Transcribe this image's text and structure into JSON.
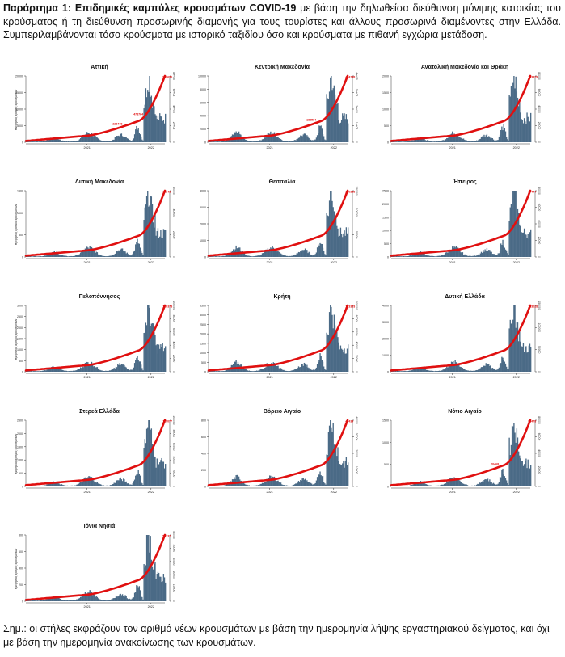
{
  "header": {
    "title": "Παράρτημα 1:  Επιδημικές καμπύλες κρουσμάτων COVID-19",
    "text": " με βάση την δηλωθείσα διεύθυνση μόνιμης κατοικίας του κρούσματος ή τη διεύθυνση προσωρινής διαμονής για τους τουρίστες και άλλους προσωρινά διαμένοντες στην Ελλάδα. Συμπεριλαμβάνονται τόσο κρούσματα με ιστορικό ταξιδίου όσο και κρούσματα με πιθανή εγχώρια μετάδοση."
  },
  "footnote": "Σημ.: οι στήλες εκφράζουν τον αριθμό νέων κρουσμάτων με βάση την ημερομηνία λήψης εργαστηριακού δείγματος, και όχι με βάση την ημερομηνία ανακοίνωσης των κρουσμάτων.",
  "colors": {
    "bars": "#4a6a86",
    "line": "#e01010",
    "label": "#e01010",
    "axis": "#333333"
  },
  "chart_data": [
    {
      "type": "bar",
      "title": "Αττική",
      "x_ticks": [
        "2021",
        "2022"
      ],
      "ymax_left": 20000,
      "y_ticks_left": [
        "0",
        "5000",
        "10000",
        "15000",
        "20000"
      ],
      "y_ticks_right": [
        "0",
        "2e+05",
        "4e+05",
        "6e+05",
        "8e+05"
      ],
      "cumulative_labels": [
        "228478",
        "478764",
        "988656"
      ],
      "ylabel_left": "Ημερήσιος αριθμός κρουσμάτων",
      "ylabel_right": "Αθροιστικός"
    },
    {
      "type": "bar",
      "title": "Κεντρική Μακεδονία",
      "x_ticks": [
        "2021",
        "2022"
      ],
      "ymax_left": 10000,
      "y_ticks_left": [
        "0",
        "2000",
        "4000",
        "6000",
        "8000",
        "10000"
      ],
      "y_ticks_right": [
        "0",
        "1e+05",
        "2e+05",
        "3e+05",
        "4e+05"
      ],
      "cumulative_labels": [
        "188584",
        "474798"
      ],
      "ylabel_left": "",
      "ylabel_right": ""
    },
    {
      "type": "bar",
      "title": "Ανατολική Μακεδονία και Θράκη",
      "x_ticks": [
        "2021",
        "2022"
      ],
      "ymax_left": 2000,
      "y_ticks_left": [
        "0",
        "500",
        "1000",
        "1500",
        "2000"
      ],
      "y_ticks_right": [
        "0",
        "20000",
        "40000",
        "60000",
        "80000"
      ],
      "cumulative_labels": [
        "143379"
      ],
      "ylabel_left": "",
      "ylabel_right": ""
    },
    {
      "type": "bar",
      "title": "Δυτική Μακεδονία",
      "x_ticks": [
        "2021",
        "2022"
      ],
      "ymax_left": 1500,
      "y_ticks_left": [
        "0",
        "500",
        "1000",
        "1500"
      ],
      "y_ticks_right": [
        "0",
        "20000",
        "40000",
        "60000"
      ],
      "cumulative_labels": [
        "71243"
      ],
      "ylabel_left": "Ημερήσιος αριθμός κρουσμάτων",
      "ylabel_right": ""
    },
    {
      "type": "bar",
      "title": "Θεσσαλία",
      "x_ticks": [
        "2021",
        "2022"
      ],
      "ymax_left": 4000,
      "y_ticks_left": [
        "0",
        "1000",
        "2000",
        "3000",
        "4000"
      ],
      "y_ticks_right": [
        "0",
        "50000",
        "100000",
        "150000"
      ],
      "cumulative_labels": [
        "176358"
      ],
      "ylabel_left": "",
      "ylabel_right": ""
    },
    {
      "type": "bar",
      "title": "Ήπειρος",
      "x_ticks": [
        "2021",
        "2022"
      ],
      "ymax_left": 2500,
      "y_ticks_left": [
        "0",
        "500",
        "1000",
        "1500",
        "2000",
        "2500"
      ],
      "y_ticks_right": [
        "0",
        "20000",
        "40000",
        "60000",
        "80000"
      ],
      "cumulative_labels": [
        "77444"
      ],
      "ylabel_left": "",
      "ylabel_right": ""
    },
    {
      "type": "bar",
      "title": "Πελοπόννησος",
      "x_ticks": [
        "2021",
        "2022"
      ],
      "ymax_left": 3000,
      "y_ticks_left": [
        "0",
        "500",
        "1000",
        "1500",
        "2000",
        "2500",
        "3000"
      ],
      "y_ticks_right": [
        "0",
        "20000",
        "40000",
        "60000",
        "80000",
        "100000"
      ],
      "cumulative_labels": [
        "126373"
      ],
      "ylabel_left": "Ημερήσιος αριθμός κρουσμάτων",
      "ylabel_right": ""
    },
    {
      "type": "bar",
      "title": "Κρήτη",
      "x_ticks": [
        "2021",
        "2022"
      ],
      "ymax_left": 3500,
      "y_ticks_left": [
        "0",
        "500",
        "1000",
        "1500",
        "2000",
        "2500",
        "3000",
        "3500"
      ],
      "y_ticks_right": [
        "0",
        "20000",
        "40000",
        "60000",
        "80000",
        "100000"
      ],
      "cumulative_labels": [
        "123353"
      ],
      "ylabel_left": "",
      "ylabel_right": ""
    },
    {
      "type": "bar",
      "title": "Δυτική Ελλάδα",
      "x_ticks": [
        "2021",
        "2022"
      ],
      "ymax_left": 4000,
      "y_ticks_left": [
        "0",
        "1000",
        "2000",
        "3000",
        "4000"
      ],
      "y_ticks_right": [
        "0",
        "50000",
        "100000",
        "150000"
      ],
      "cumulative_labels": [
        "183028"
      ],
      "ylabel_left": "",
      "ylabel_right": ""
    },
    {
      "type": "bar",
      "title": "Στερεά Ελλάδα",
      "x_ticks": [
        "2021",
        "2022"
      ],
      "ymax_left": 2500,
      "y_ticks_left": [
        "0",
        "500",
        "1000",
        "1500",
        "2000",
        "2500"
      ],
      "y_ticks_right": [
        "0",
        "20000",
        "40000",
        "60000",
        "80000",
        "100000"
      ],
      "cumulative_labels": [
        "110077"
      ],
      "ylabel_left": "Ημερήσιος αριθμός κρουσμάτων",
      "ylabel_right": ""
    },
    {
      "type": "bar",
      "title": "Βόρειο Αιγαίο",
      "x_ticks": [
        "2021",
        "2022"
      ],
      "ymax_left": 800,
      "y_ticks_left": [
        "0",
        "200",
        "400",
        "600",
        "800"
      ],
      "y_ticks_right": [
        "0",
        "10000",
        "20000",
        "30000",
        "40000"
      ],
      "cumulative_labels": [
        "47439"
      ],
      "ylabel_left": "",
      "ylabel_right": ""
    },
    {
      "type": "bar",
      "title": "Νότιο Αιγαίο",
      "x_ticks": [
        "2021",
        "2022"
      ],
      "ymax_left": 1500,
      "y_ticks_left": [
        "0",
        "500",
        "1000",
        "1500"
      ],
      "y_ticks_right": [
        "0",
        "20000",
        "40000",
        "60000",
        "80000"
      ],
      "cumulative_labels": [
        "20468",
        "83478"
      ],
      "ylabel_left": "",
      "ylabel_right": ""
    },
    {
      "type": "bar",
      "title": "Ιόνια Νησιά",
      "x_ticks": [
        "2021",
        "2022"
      ],
      "ymax_left": 800,
      "y_ticks_left": [
        "0",
        "200",
        "400",
        "600",
        "800"
      ],
      "y_ticks_right": [
        "0",
        "10000",
        "20000",
        "30000",
        "40000",
        "50000"
      ],
      "cumulative_labels": [
        "50237"
      ],
      "ylabel_left": "Ημερήσιος αριθμός κρουσμάτων",
      "ylabel_right": ""
    }
  ]
}
